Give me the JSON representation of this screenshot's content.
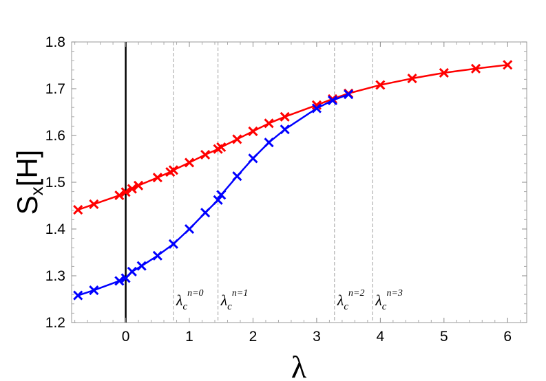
{
  "chart_data": {
    "type": "line",
    "xlabel": "λ",
    "ylabel_main": "S",
    "ylabel_sub": "x",
    "ylabel_tail": "[H]",
    "xlim": [
      -0.85,
      6.3
    ],
    "ylim": [
      1.2,
      1.8
    ],
    "x_ticks": [
      0,
      1,
      2,
      3,
      4,
      5,
      6
    ],
    "y_ticks": [
      1.2,
      1.3,
      1.4,
      1.5,
      1.6,
      1.7,
      1.8
    ],
    "x_tick_labels": [
      "0",
      "1",
      "2",
      "3",
      "4",
      "5",
      "6"
    ],
    "y_tick_labels": [
      "1.2",
      "1.3",
      "1.4",
      "1.5",
      "1.6",
      "1.7",
      "1.8"
    ],
    "zero_line_x": 0,
    "critical_lines": [
      {
        "x": 0.75,
        "base": "λ",
        "sub": "c",
        "sup": "n=0"
      },
      {
        "x": 1.45,
        "base": "λ",
        "sub": "c",
        "sup": "n=1"
      },
      {
        "x": 3.28,
        "base": "λ",
        "sub": "c",
        "sup": "n=2"
      },
      {
        "x": 3.88,
        "base": "λ",
        "sub": "c",
        "sup": "n=3"
      }
    ],
    "series": [
      {
        "color": "#ff0000",
        "x": [
          -0.75,
          -0.5,
          -0.1,
          0,
          0.1,
          0.2,
          0.5,
          0.7,
          0.75,
          1,
          1.25,
          1.45,
          1.5,
          1.75,
          2,
          2.25,
          2.5,
          3,
          3.25,
          3.5,
          4,
          4.5,
          5,
          5.5,
          6
        ],
        "y": [
          1.441,
          1.453,
          1.472,
          1.479,
          1.486,
          1.493,
          1.51,
          1.522,
          1.526,
          1.542,
          1.559,
          1.571,
          1.575,
          1.592,
          1.609,
          1.626,
          1.64,
          1.665,
          1.678,
          1.69,
          1.708,
          1.722,
          1.734,
          1.743,
          1.751
        ]
      },
      {
        "color": "#0000ff",
        "x": [
          -0.75,
          -0.5,
          -0.1,
          0,
          0.1,
          0.25,
          0.5,
          0.75,
          1,
          1.25,
          1.45,
          1.5,
          1.75,
          2,
          2.25,
          2.5,
          3,
          3.25,
          3.5
        ],
        "y": [
          1.258,
          1.269,
          1.289,
          1.295,
          1.309,
          1.321,
          1.343,
          1.368,
          1.4,
          1.435,
          1.462,
          1.473,
          1.513,
          1.551,
          1.585,
          1.613,
          1.658,
          1.675,
          1.688
        ]
      }
    ]
  }
}
